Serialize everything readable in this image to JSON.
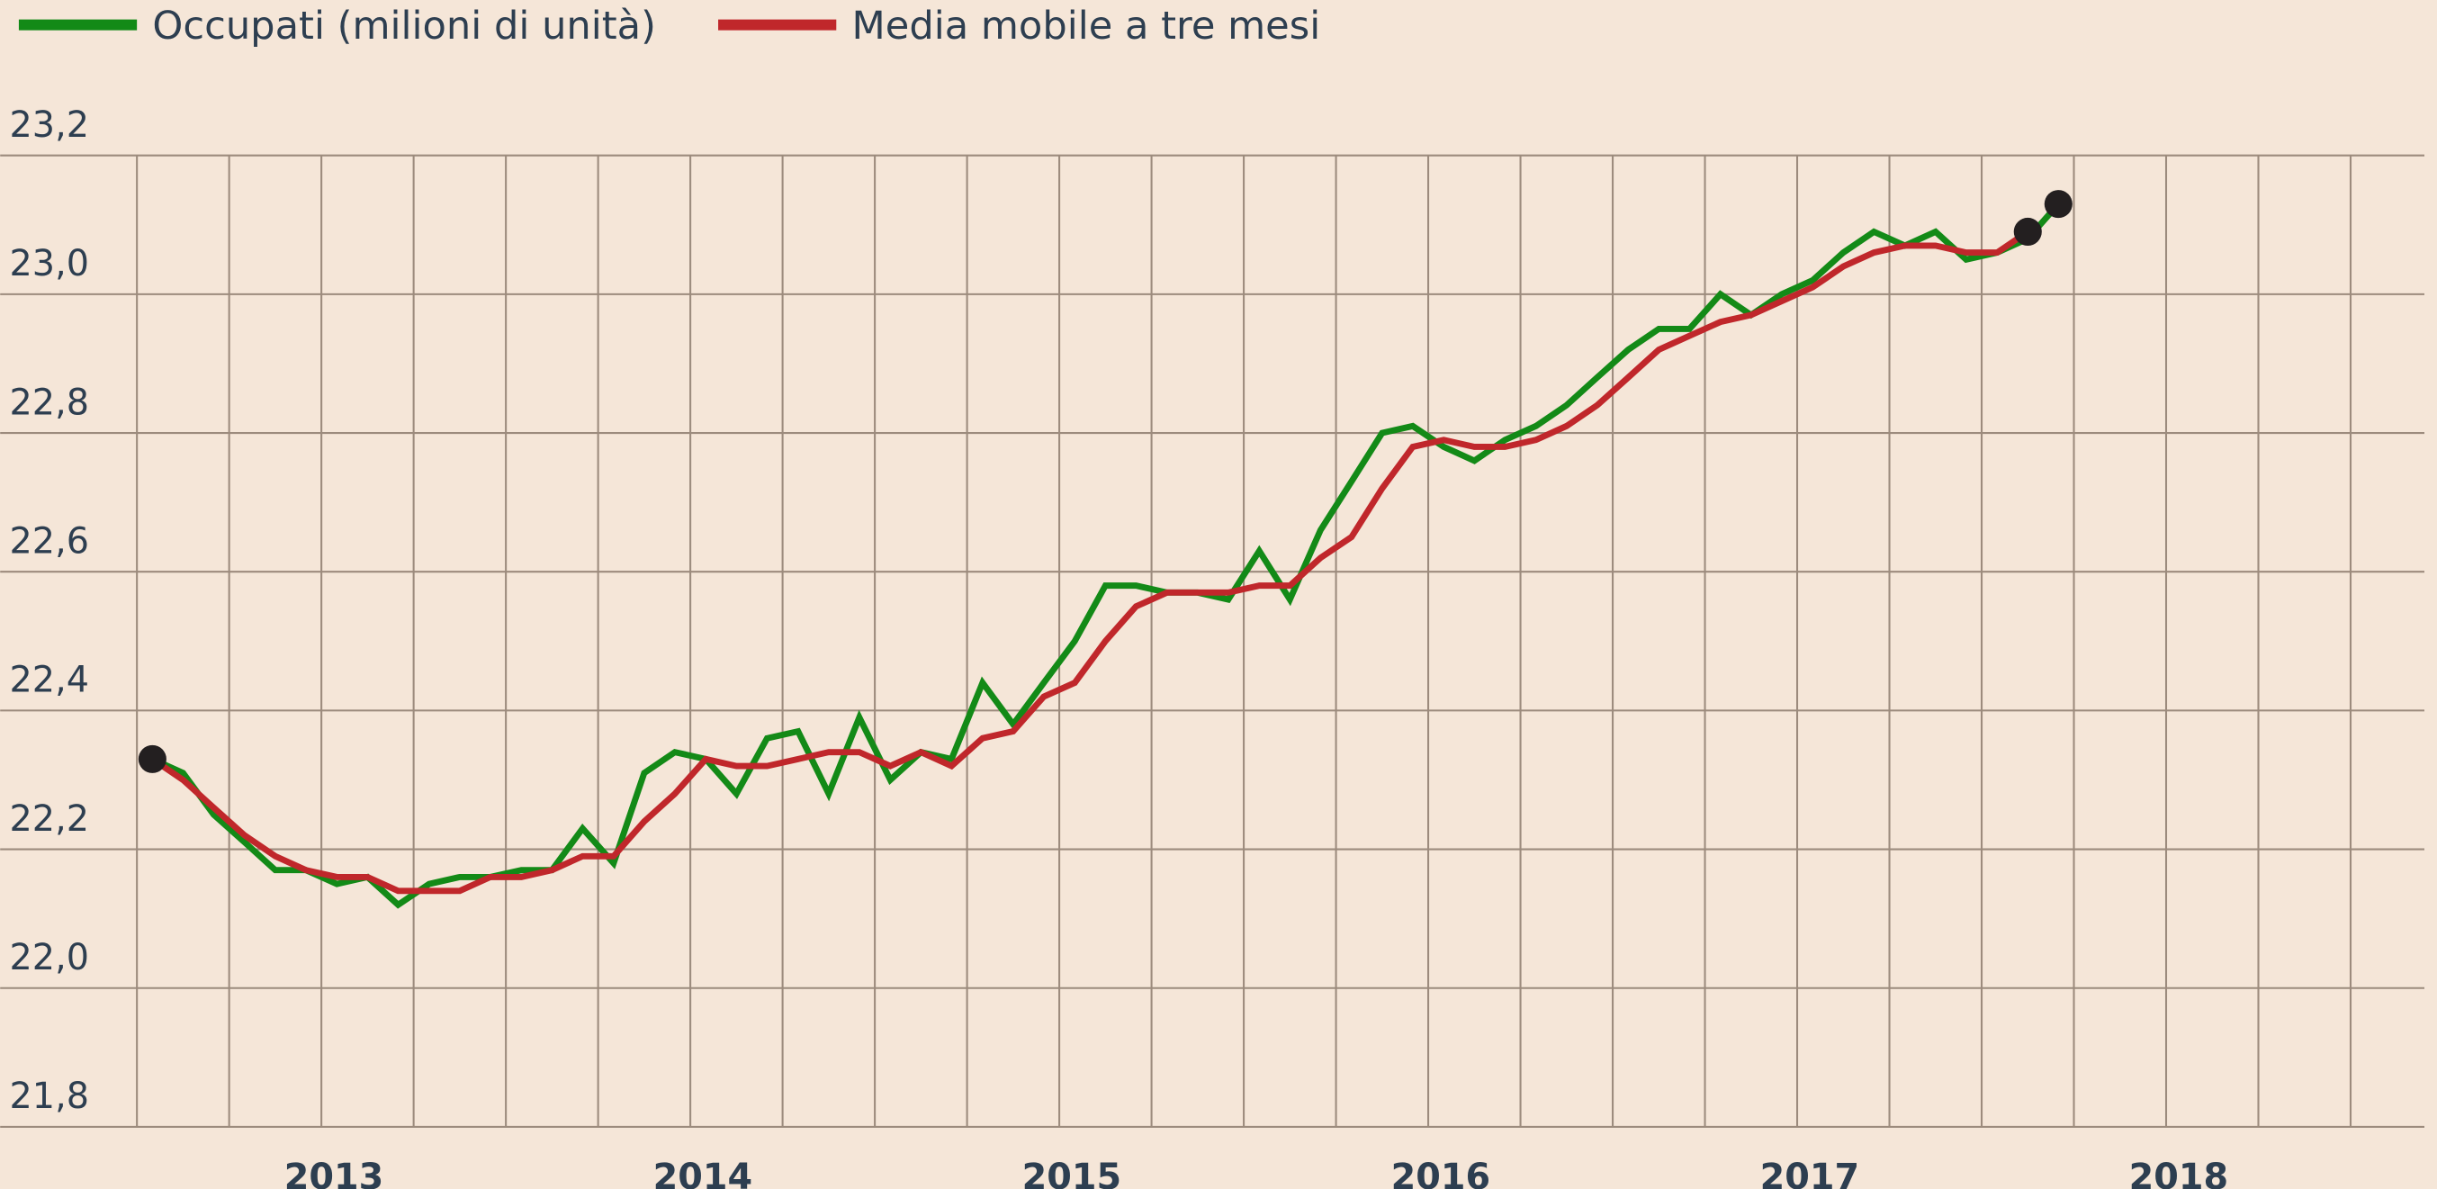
{
  "chart_data": {
    "type": "line",
    "x": [
      2012.542,
      2012.625,
      2012.708,
      2012.792,
      2012.875,
      2012.958,
      2013.042,
      2013.125,
      2013.208,
      2013.292,
      2013.375,
      2013.458,
      2013.542,
      2013.625,
      2013.708,
      2013.792,
      2013.875,
      2013.958,
      2014.042,
      2014.125,
      2014.208,
      2014.292,
      2014.375,
      2014.458,
      2014.542,
      2014.625,
      2014.708,
      2014.792,
      2014.875,
      2014.958,
      2015.042,
      2015.125,
      2015.208,
      2015.292,
      2015.375,
      2015.458,
      2015.542,
      2015.625,
      2015.708,
      2015.792,
      2015.875,
      2015.958,
      2016.042,
      2016.125,
      2016.208,
      2016.292,
      2016.375,
      2016.458,
      2016.542,
      2016.625,
      2016.708,
      2016.792,
      2016.875,
      2016.958,
      2017.042,
      2017.125,
      2017.208,
      2017.292,
      2017.375,
      2017.458,
      2017.542,
      2017.625,
      2017.708
    ],
    "series": [
      {
        "name": "Occupati (milioni di unità)",
        "color": "#138a17",
        "markers": [
          0,
          62
        ],
        "values": [
          22.33,
          22.31,
          22.25,
          22.21,
          22.17,
          22.17,
          22.15,
          22.16,
          22.12,
          22.15,
          22.16,
          22.16,
          22.17,
          22.17,
          22.23,
          22.18,
          22.31,
          22.34,
          22.33,
          22.28,
          22.36,
          22.37,
          22.28,
          22.39,
          22.3,
          22.34,
          22.33,
          22.44,
          22.38,
          22.44,
          22.5,
          22.58,
          22.58,
          22.57,
          22.57,
          22.56,
          22.63,
          22.56,
          22.66,
          22.73,
          22.8,
          22.81,
          22.78,
          22.76,
          22.79,
          22.81,
          22.84,
          22.88,
          22.92,
          22.95,
          22.95,
          23.0,
          22.97,
          23.0,
          23.02,
          23.06,
          23.09,
          23.07,
          23.09,
          23.05,
          23.06,
          23.08,
          23.13
        ]
      },
      {
        "name": "Media mobile a tre mesi",
        "color": "#c0272b",
        "markers": [
          61
        ],
        "values": [
          22.33,
          22.3,
          22.26,
          22.22,
          22.19,
          22.17,
          22.16,
          22.16,
          22.14,
          22.14,
          22.14,
          22.16,
          22.16,
          22.17,
          22.19,
          22.19,
          22.24,
          22.28,
          22.33,
          22.32,
          22.32,
          22.33,
          22.34,
          22.34,
          22.32,
          22.34,
          22.32,
          22.36,
          22.37,
          22.42,
          22.44,
          22.5,
          22.55,
          22.57,
          22.57,
          22.57,
          22.58,
          22.58,
          22.62,
          22.65,
          22.72,
          22.78,
          22.79,
          22.78,
          22.78,
          22.79,
          22.81,
          22.84,
          22.88,
          22.92,
          22.94,
          22.96,
          22.97,
          22.99,
          23.01,
          23.04,
          23.06,
          23.07,
          23.07,
          23.06,
          23.06,
          23.09,
          null
        ]
      }
    ],
    "xlim": [
      2012.5,
      2018.7
    ],
    "xticks": [
      2013,
      2014,
      2015,
      2016,
      2017,
      2018
    ],
    "x_minor_per_tick": 4,
    "ylim": [
      21.8,
      23.2
    ],
    "yticks": [
      {
        "value": 21.8,
        "label": "21,8"
      },
      {
        "value": 22.0,
        "label": "22,0"
      },
      {
        "value": 22.2,
        "label": "22,2"
      },
      {
        "value": 22.4,
        "label": "22,4"
      },
      {
        "value": 22.6,
        "label": "22,6"
      },
      {
        "value": 22.8,
        "label": "22,8"
      },
      {
        "value": 23.0,
        "label": "23,0"
      },
      {
        "value": 23.2,
        "label": "23,2"
      }
    ],
    "grid": true,
    "legend": "top-left"
  }
}
